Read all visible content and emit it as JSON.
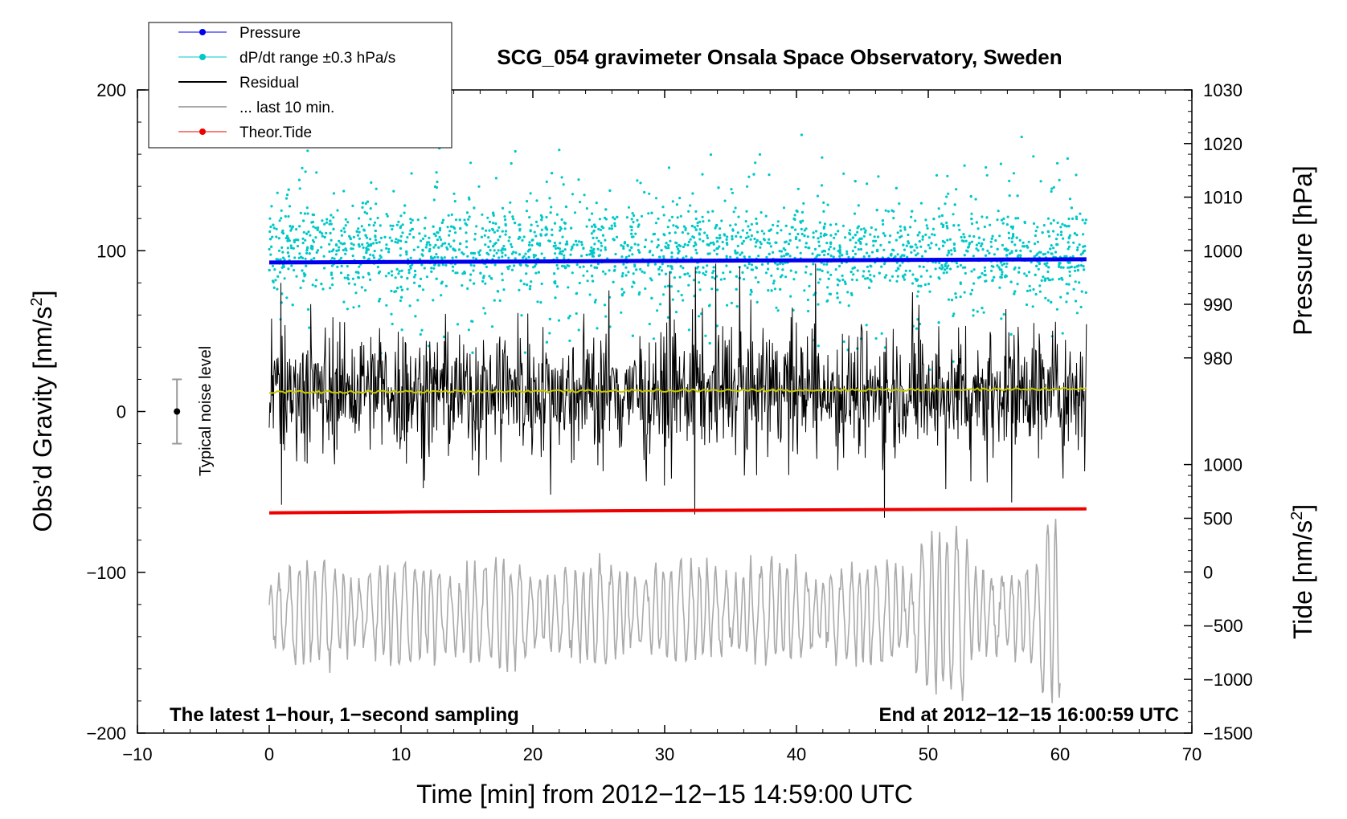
{
  "chart_data": {
    "type": "line",
    "title": "SCG_054 gravimeter Onsala Space Observatory, Sweden",
    "xlabel": "Time [min] from 2012−12−15 14:59:00 UTC",
    "ylabel_left_main": "Obs’d Gravity [nm/s",
    "ylabel_left_sup": "2",
    "ylabel_left_end": "]",
    "ylabel_right_pressure": "Pressure [hPa]",
    "ylabel_right_tide_main": "Tide [nm/s",
    "ylabel_right_tide_sup": "2",
    "ylabel_right_tide_end": "]",
    "xlim": [
      -10,
      70
    ],
    "ylim": [
      -200,
      200
    ],
    "x_ticks": [
      {
        "value": -10,
        "label": "−10"
      },
      {
        "value": 0,
        "label": "0"
      },
      {
        "value": 10,
        "label": "10"
      },
      {
        "value": 20,
        "label": "20"
      },
      {
        "value": 30,
        "label": "30"
      },
      {
        "value": 40,
        "label": "40"
      },
      {
        "value": 50,
        "label": "50"
      },
      {
        "value": 60,
        "label": "60"
      },
      {
        "value": 70,
        "label": "70"
      }
    ],
    "y_ticks": [
      {
        "value": 200,
        "label": "200"
      },
      {
        "value": 100,
        "label": "100"
      },
      {
        "value": 0,
        "label": "0"
      },
      {
        "value": -100,
        "label": "−100"
      },
      {
        "value": -200,
        "label": "−200"
      }
    ],
    "pressure_axis": {
      "range_hPa": [
        975,
        1030
      ],
      "ticks": [
        {
          "value": 1030,
          "label": "1030"
        },
        {
          "value": 1020,
          "label": "1020"
        },
        {
          "value": 1010,
          "label": "1010"
        },
        {
          "value": 1000,
          "label": "1000"
        },
        {
          "value": 990,
          "label": "990"
        },
        {
          "value": 980,
          "label": "980"
        }
      ]
    },
    "tide_axis": {
      "range": [
        -1500,
        1000
      ],
      "ticks": [
        {
          "value": 1000,
          "label": "1000"
        },
        {
          "value": 500,
          "label": "500"
        },
        {
          "value": 0,
          "label": "0"
        },
        {
          "value": -500,
          "label": "−500"
        },
        {
          "value": -1000,
          "label": "−1000"
        },
        {
          "value": -1500,
          "label": "−1500"
        }
      ]
    },
    "legend": {
      "position": "top-left",
      "entries": [
        {
          "name": "Pressure",
          "color": "#0000ee",
          "style": "line-dot"
        },
        {
          "name": "dP/dt range ±0.3 hPa/s",
          "color": "#00c8c8",
          "style": "line-dot"
        },
        {
          "name": "Residual",
          "color": "#000000",
          "style": "line"
        },
        {
          "name": "... last 10 min.",
          "color": "#aaaaaa",
          "style": "line"
        },
        {
          "name": "Theor.Tide",
          "color": "#ee0000",
          "style": "line-dot"
        }
      ]
    },
    "series": [
      {
        "name": "Pressure",
        "axis": "pressure",
        "color": "#0000ee",
        "x": [
          0,
          10,
          20,
          30,
          40,
          50,
          62
        ],
        "values": [
          997.8,
          997.9,
          998.0,
          998.1,
          998.2,
          998.3,
          998.4
        ]
      },
      {
        "name": "dP/dt range ±0.3 hPa/s",
        "axis": "gravity",
        "type": "scatter",
        "color": "#00c8c8",
        "x_range": [
          0,
          62
        ],
        "center": 100,
        "spread": 28
      },
      {
        "name": "Residual",
        "axis": "gravity",
        "color": "#000000",
        "x_range": [
          0,
          62
        ],
        "center": 13,
        "amplitude": 30,
        "extremes": [
          {
            "x": 32.3,
            "values": [
              90,
              -64
            ]
          },
          {
            "x": 0.9,
            "values": [
              80,
              -58
            ]
          }
        ]
      },
      {
        "name": "Residual smoothed",
        "axis": "gravity",
        "color": "#c8c800",
        "x": [
          0,
          31,
          62
        ],
        "values": [
          12,
          13,
          14
        ]
      },
      {
        "name": "Theor.Tide",
        "axis": "gravity",
        "color": "#ee0000",
        "x": [
          0,
          9,
          20,
          31,
          45,
          62
        ],
        "values": [
          -63,
          -62.5,
          -62,
          -61.5,
          -61,
          -60.5
        ]
      },
      {
        "name": "... last 10 min.",
        "axis": "gravity",
        "color": "#aaaaaa",
        "x_range": [
          0,
          60
        ],
        "center": -125,
        "amplitude": 25,
        "extremes": [
          {
            "x": 50.5,
            "values": [
              -62,
              -170
            ]
          },
          {
            "x": 59.5,
            "values": [
              -75,
              -180
            ]
          }
        ]
      }
    ],
    "annotations": {
      "noise_label": "Typical noise level",
      "noise_marker": {
        "x": -7,
        "center": 0,
        "half_range": 20
      },
      "bottom_left": "The latest 1−hour, 1−second sampling",
      "bottom_right": "End at 2012−12−15 16:00:59 UTC"
    }
  }
}
